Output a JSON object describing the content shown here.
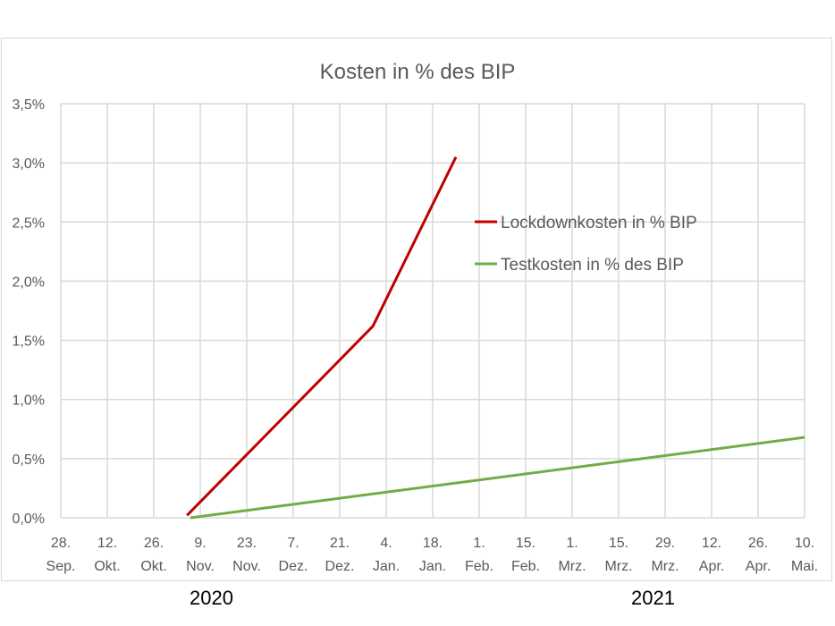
{
  "chart_data": {
    "type": "line",
    "title": "Kosten in % des BIP",
    "xlabel": "",
    "ylabel": "",
    "x_ticks": [
      {
        "date": "2020-09-28",
        "label": [
          "28.",
          "Sep."
        ]
      },
      {
        "date": "2020-10-12",
        "label": [
          "12.",
          "Okt."
        ]
      },
      {
        "date": "2020-10-26",
        "label": [
          "26.",
          "Okt."
        ]
      },
      {
        "date": "2020-11-09",
        "label": [
          "9.",
          "Nov."
        ]
      },
      {
        "date": "2020-11-23",
        "label": [
          "23.",
          "Nov."
        ]
      },
      {
        "date": "2020-12-07",
        "label": [
          "7.",
          "Dez."
        ]
      },
      {
        "date": "2020-12-21",
        "label": [
          "21.",
          "Dez."
        ]
      },
      {
        "date": "2021-01-04",
        "label": [
          "4.",
          "Jan."
        ]
      },
      {
        "date": "2021-01-18",
        "label": [
          "18.",
          "Jan."
        ]
      },
      {
        "date": "2021-02-01",
        "label": [
          "1.",
          "Feb."
        ]
      },
      {
        "date": "2021-02-15",
        "label": [
          "15.",
          "Feb."
        ]
      },
      {
        "date": "2021-03-01",
        "label": [
          "1.",
          "Mrz."
        ]
      },
      {
        "date": "2021-03-15",
        "label": [
          "15.",
          "Mrz."
        ]
      },
      {
        "date": "2021-03-29",
        "label": [
          "29.",
          "Mrz."
        ]
      },
      {
        "date": "2021-04-12",
        "label": [
          "12.",
          "Apr."
        ]
      },
      {
        "date": "2021-04-26",
        "label": [
          "26.",
          "Apr."
        ]
      },
      {
        "date": "2021-05-10",
        "label": [
          "10.",
          "Mai."
        ]
      }
    ],
    "xlim": [
      "2020-09-28",
      "2021-05-10"
    ],
    "ylim": [
      0,
      3.5
    ],
    "y_ticks": [
      0,
      0.5,
      1,
      1.5,
      2,
      2.5,
      3,
      3.5
    ],
    "y_tick_labels": [
      "0,0%",
      "0,5%",
      "1,0%",
      "1,5%",
      "2,0%",
      "2,5%",
      "3,0%",
      "3,5%"
    ],
    "grid": true,
    "legend_position": "right",
    "series": [
      {
        "name": "Lockdownkosten in % BIP",
        "color": "#c00000",
        "points": [
          [
            "2020-11-05",
            0.02
          ],
          [
            "2020-12-31",
            1.62
          ],
          [
            "2021-01-25",
            3.05
          ]
        ]
      },
      {
        "name": "Testkosten in % des BIP",
        "color": "#70ad47",
        "points": [
          [
            "2020-11-06",
            0.0
          ],
          [
            "2021-05-10",
            0.68
          ]
        ]
      }
    ],
    "year_labels": [
      "2020",
      "2021"
    ]
  }
}
